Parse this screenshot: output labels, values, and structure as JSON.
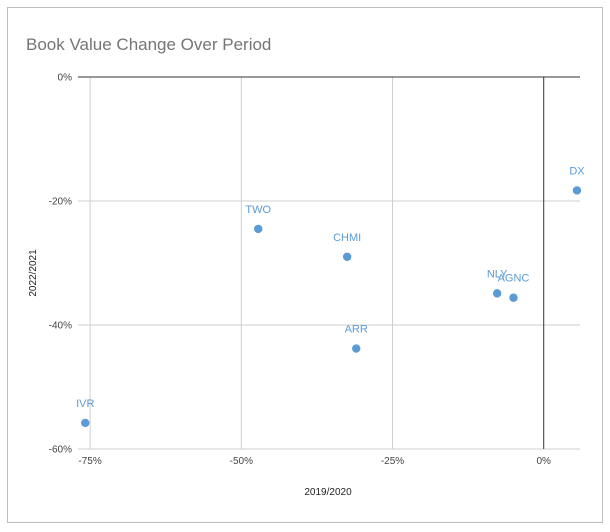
{
  "chart_data": {
    "type": "scatter",
    "title": "Book Value Change Over Period",
    "xlabel": "2019/2020",
    "ylabel": "2022/2021",
    "xlim": [
      -0.77,
      0.06
    ],
    "ylim": [
      -0.6,
      0
    ],
    "x_ticks": [
      {
        "value": -0.75,
        "label": "-75%"
      },
      {
        "value": -0.5,
        "label": "-50%"
      },
      {
        "value": -0.25,
        "label": "-25%"
      },
      {
        "value": 0,
        "label": "0%"
      }
    ],
    "y_ticks": [
      {
        "value": 0,
        "label": "0%"
      },
      {
        "value": -0.2,
        "label": "-20%"
      },
      {
        "value": -0.4,
        "label": "-40%"
      },
      {
        "value": -0.6,
        "label": "-60%"
      }
    ],
    "grid": true,
    "legend": "none",
    "point_color": "#5b9bd5",
    "points": [
      {
        "label": "DX",
        "x": 0.055,
        "y": -0.183
      },
      {
        "label": "TWO",
        "x": -0.472,
        "y": -0.245
      },
      {
        "label": "CHMI",
        "x": -0.325,
        "y": -0.29
      },
      {
        "label": "NLY",
        "x": -0.077,
        "y": -0.349
      },
      {
        "label": "AGNC",
        "x": -0.05,
        "y": -0.356
      },
      {
        "label": "ARR",
        "x": -0.31,
        "y": -0.438
      },
      {
        "label": "IVR",
        "x": -0.758,
        "y": -0.558
      }
    ]
  }
}
